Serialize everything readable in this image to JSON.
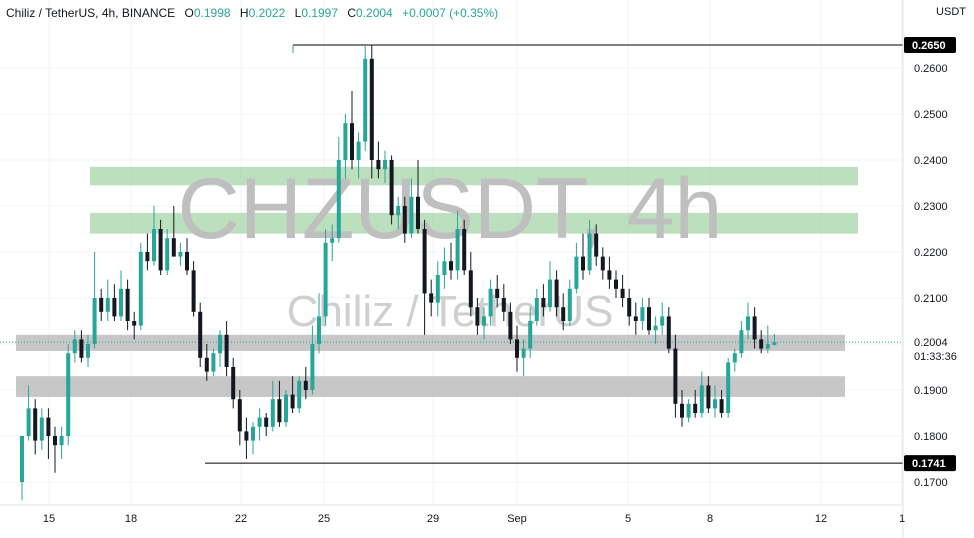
{
  "header": {
    "symbol": "Chiliz / TetherUS, 4h, BINANCE",
    "o_label": "O",
    "o_value": "0.1998",
    "h_label": "H",
    "h_value": "0.2022",
    "l_label": "L",
    "l_value": "0.1997",
    "c_label": "C",
    "c_value": "0.2004",
    "change": "+0.0007 (+0.35%)"
  },
  "currency": "USDT",
  "watermark": {
    "line1": "CHZUSDT, 4h",
    "line2": "Chiliz / TetherUS"
  },
  "colors": {
    "up": "#26a69a",
    "down": "#131722",
    "zone_green": "#a5d6a7",
    "zone_gray": "#bdbdbd",
    "tag_bg": "#000000"
  },
  "chart_data": {
    "type": "candlestick",
    "ylim": [
      0.165,
      0.27
    ],
    "y_ticks": [
      "0.2600",
      "0.2500",
      "0.2400",
      "0.2300",
      "0.2200",
      "0.2100",
      "0.1900",
      "0.1800",
      "0.1700"
    ],
    "x_ticks": [
      "15",
      "18",
      "22",
      "25",
      "29",
      "Sep",
      "5",
      "8",
      "12",
      "1"
    ],
    "price_tags": [
      {
        "label": "0.2650",
        "value": 0.265
      },
      {
        "label": "0.1741",
        "value": 0.1741
      }
    ],
    "current_price": {
      "label": "0.2004",
      "value": 0.2004,
      "countdown": "01:33:36"
    },
    "horizontal_lines": [
      {
        "value": 0.265,
        "x_start": "24"
      },
      {
        "value": 0.1741,
        "x_start": "20"
      }
    ],
    "zones": [
      {
        "color": "green",
        "low": 0.2345,
        "high": 0.2385
      },
      {
        "color": "green",
        "low": 0.224,
        "high": 0.2285
      },
      {
        "color": "gray",
        "low": 0.1985,
        "high": 0.202
      },
      {
        "color": "gray",
        "low": 0.1885,
        "high": 0.193
      }
    ],
    "candles": [
      [
        0.17,
        0.18,
        0.166,
        0.18
      ],
      [
        0.18,
        0.191,
        0.179,
        0.186
      ],
      [
        0.186,
        0.188,
        0.176,
        0.179
      ],
      [
        0.179,
        0.186,
        0.177,
        0.184
      ],
      [
        0.184,
        0.186,
        0.175,
        0.18
      ],
      [
        0.18,
        0.182,
        0.172,
        0.178
      ],
      [
        0.178,
        0.182,
        0.175,
        0.18
      ],
      [
        0.18,
        0.2,
        0.178,
        0.198
      ],
      [
        0.198,
        0.203,
        0.196,
        0.201
      ],
      [
        0.201,
        0.203,
        0.196,
        0.197
      ],
      [
        0.197,
        0.202,
        0.195,
        0.2
      ],
      [
        0.2,
        0.22,
        0.199,
        0.21
      ],
      [
        0.21,
        0.212,
        0.205,
        0.207
      ],
      [
        0.207,
        0.214,
        0.205,
        0.21
      ],
      [
        0.21,
        0.213,
        0.205,
        0.206
      ],
      [
        0.206,
        0.216,
        0.205,
        0.212
      ],
      [
        0.212,
        0.214,
        0.203,
        0.205
      ],
      [
        0.205,
        0.207,
        0.201,
        0.204
      ],
      [
        0.204,
        0.222,
        0.203,
        0.22
      ],
      [
        0.22,
        0.224,
        0.216,
        0.218
      ],
      [
        0.218,
        0.23,
        0.217,
        0.225
      ],
      [
        0.225,
        0.227,
        0.215,
        0.216
      ],
      [
        0.216,
        0.225,
        0.215,
        0.223
      ],
      [
        0.223,
        0.23,
        0.219,
        0.219
      ],
      [
        0.219,
        0.222,
        0.217,
        0.22
      ],
      [
        0.22,
        0.223,
        0.215,
        0.216
      ],
      [
        0.216,
        0.218,
        0.206,
        0.207
      ],
      [
        0.207,
        0.209,
        0.195,
        0.197
      ],
      [
        0.197,
        0.2,
        0.192,
        0.194
      ],
      [
        0.194,
        0.199,
        0.193,
        0.198
      ],
      [
        0.198,
        0.203,
        0.195,
        0.202
      ],
      [
        0.202,
        0.205,
        0.193,
        0.195
      ],
      [
        0.195,
        0.197,
        0.186,
        0.188
      ],
      [
        0.188,
        0.19,
        0.178,
        0.181
      ],
      [
        0.181,
        0.184,
        0.175,
        0.179
      ],
      [
        0.179,
        0.183,
        0.176,
        0.182
      ],
      [
        0.182,
        0.186,
        0.179,
        0.184
      ],
      [
        0.184,
        0.185,
        0.18,
        0.182
      ],
      [
        0.182,
        0.192,
        0.181,
        0.188
      ],
      [
        0.188,
        0.192,
        0.182,
        0.183
      ],
      [
        0.183,
        0.19,
        0.182,
        0.189
      ],
      [
        0.189,
        0.193,
        0.185,
        0.186
      ],
      [
        0.186,
        0.193,
        0.185,
        0.192
      ],
      [
        0.192,
        0.195,
        0.188,
        0.19
      ],
      [
        0.19,
        0.204,
        0.189,
        0.2
      ],
      [
        0.2,
        0.211,
        0.198,
        0.206
      ],
      [
        0.206,
        0.225,
        0.204,
        0.222
      ],
      [
        0.222,
        0.226,
        0.218,
        0.223
      ],
      [
        0.223,
        0.245,
        0.222,
        0.24
      ],
      [
        0.24,
        0.25,
        0.236,
        0.248
      ],
      [
        0.248,
        0.255,
        0.238,
        0.24
      ],
      [
        0.24,
        0.246,
        0.236,
        0.244
      ],
      [
        0.244,
        0.265,
        0.242,
        0.262
      ],
      [
        0.262,
        0.265,
        0.236,
        0.24
      ],
      [
        0.24,
        0.244,
        0.236,
        0.238
      ],
      [
        0.238,
        0.242,
        0.235,
        0.24
      ],
      [
        0.24,
        0.241,
        0.226,
        0.228
      ],
      [
        0.228,
        0.232,
        0.225,
        0.23
      ],
      [
        0.23,
        0.232,
        0.222,
        0.224
      ],
      [
        0.224,
        0.236,
        0.223,
        0.232
      ],
      [
        0.232,
        0.24,
        0.224,
        0.225
      ],
      [
        0.225,
        0.227,
        0.202,
        0.211
      ],
      [
        0.211,
        0.214,
        0.206,
        0.209
      ],
      [
        0.209,
        0.218,
        0.206,
        0.215
      ],
      [
        0.215,
        0.221,
        0.212,
        0.218
      ],
      [
        0.218,
        0.222,
        0.214,
        0.216
      ],
      [
        0.216,
        0.229,
        0.214,
        0.225
      ],
      [
        0.225,
        0.227,
        0.215,
        0.216
      ],
      [
        0.216,
        0.22,
        0.206,
        0.208
      ],
      [
        0.208,
        0.21,
        0.202,
        0.204
      ],
      [
        0.204,
        0.208,
        0.201,
        0.206
      ],
      [
        0.206,
        0.214,
        0.204,
        0.212
      ],
      [
        0.212,
        0.215,
        0.208,
        0.21
      ],
      [
        0.21,
        0.213,
        0.205,
        0.207
      ],
      [
        0.207,
        0.209,
        0.2,
        0.201
      ],
      [
        0.201,
        0.204,
        0.194,
        0.197
      ],
      [
        0.197,
        0.201,
        0.193,
        0.199
      ],
      [
        0.199,
        0.208,
        0.197,
        0.205
      ],
      [
        0.205,
        0.212,
        0.204,
        0.21
      ],
      [
        0.21,
        0.213,
        0.206,
        0.208
      ],
      [
        0.208,
        0.218,
        0.207,
        0.214
      ],
      [
        0.214,
        0.216,
        0.206,
        0.208
      ],
      [
        0.208,
        0.211,
        0.203,
        0.205
      ],
      [
        0.205,
        0.214,
        0.204,
        0.212
      ],
      [
        0.212,
        0.222,
        0.211,
        0.219
      ],
      [
        0.219,
        0.224,
        0.214,
        0.216
      ],
      [
        0.216,
        0.227,
        0.215,
        0.224
      ],
      [
        0.224,
        0.226,
        0.217,
        0.219
      ],
      [
        0.219,
        0.221,
        0.214,
        0.216
      ],
      [
        0.216,
        0.219,
        0.212,
        0.214
      ],
      [
        0.214,
        0.216,
        0.21,
        0.212
      ],
      [
        0.212,
        0.215,
        0.208,
        0.21
      ],
      [
        0.21,
        0.212,
        0.204,
        0.206
      ],
      [
        0.206,
        0.209,
        0.202,
        0.205
      ],
      [
        0.205,
        0.21,
        0.203,
        0.208
      ],
      [
        0.208,
        0.21,
        0.202,
        0.203
      ],
      [
        0.203,
        0.206,
        0.2,
        0.204
      ],
      [
        0.204,
        0.209,
        0.202,
        0.206
      ],
      [
        0.206,
        0.208,
        0.198,
        0.199
      ],
      [
        0.199,
        0.202,
        0.184,
        0.187
      ],
      [
        0.187,
        0.19,
        0.182,
        0.184
      ],
      [
        0.184,
        0.188,
        0.183,
        0.187
      ],
      [
        0.187,
        0.19,
        0.184,
        0.185
      ],
      [
        0.185,
        0.194,
        0.184,
        0.191
      ],
      [
        0.191,
        0.193,
        0.185,
        0.186
      ],
      [
        0.186,
        0.191,
        0.184,
        0.188
      ],
      [
        0.188,
        0.19,
        0.184,
        0.185
      ],
      [
        0.185,
        0.197,
        0.184,
        0.196
      ],
      [
        0.196,
        0.199,
        0.194,
        0.198
      ],
      [
        0.198,
        0.205,
        0.197,
        0.203
      ],
      [
        0.203,
        0.209,
        0.201,
        0.206
      ],
      [
        0.206,
        0.208,
        0.199,
        0.201
      ],
      [
        0.201,
        0.203,
        0.198,
        0.199
      ],
      [
        0.199,
        0.204,
        0.198,
        0.2
      ],
      [
        0.1998,
        0.2022,
        0.1997,
        0.2004
      ]
    ]
  }
}
